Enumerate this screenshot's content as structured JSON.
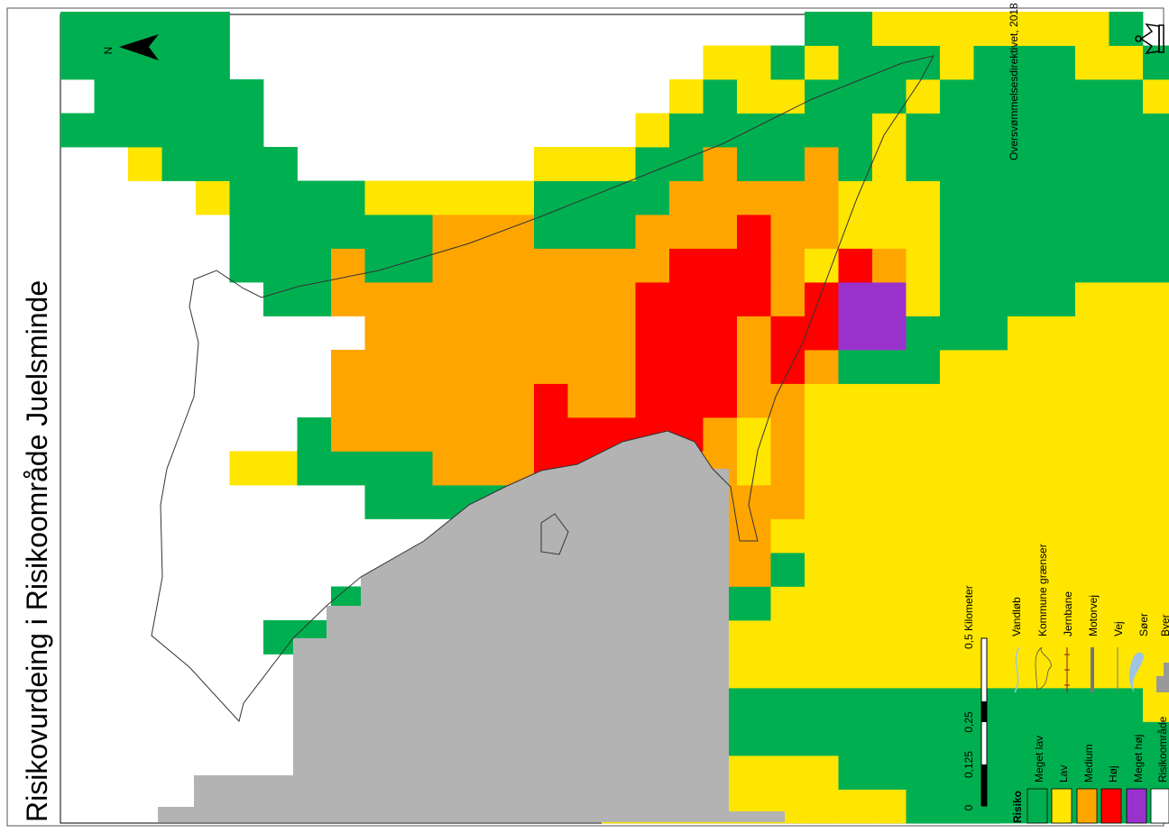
{
  "title": "Risikovurdeing i Risikoområde Juelsminde",
  "north_label": "N",
  "credit": "Oversvømmelsesdirektivet, 2018",
  "scale": {
    "ticks": [
      "0",
      "0,125",
      "0,25",
      "0,5 Kilometer"
    ]
  },
  "legend": {
    "risk_title": "Risiko",
    "risk_items": [
      {
        "label": "Meget lav",
        "color": "#00b050"
      },
      {
        "label": "Lav",
        "color": "#ffe600"
      },
      {
        "label": "Medium",
        "color": "#ffa500"
      },
      {
        "label": "Høj",
        "color": "#ff0000"
      },
      {
        "label": "Meget høj",
        "color": "#9932cc"
      },
      {
        "label": "Risikoområde",
        "color": "#ffffff"
      }
    ],
    "features": [
      {
        "label": "Vandløb",
        "icon": "stream-icon"
      },
      {
        "label": "Kommune grænser",
        "icon": "municipality-border-icon"
      },
      {
        "label": "Jernbane",
        "icon": "railway-icon"
      },
      {
        "label": "Motorvej",
        "icon": "motorway-icon"
      },
      {
        "label": "Vej",
        "icon": "road-icon"
      },
      {
        "label": "Søer",
        "icon": "lake-icon"
      },
      {
        "label": "Byer",
        "icon": "town-icon"
      }
    ]
  },
  "colors": {
    "G": "#00b050",
    "Y": "#ffe600",
    "O": "#ffa500",
    "R": "#ff0000",
    "P": "#9932cc",
    "S": "#b3b3b3",
    "W": "#ffffff"
  },
  "risk_grid": [
    "....................G.GG",
    "....................GGGG",
    "...................YGGGG",
    "...................GGGGG",
    "..................YGGGGG",
    "..........Y.....GGGGGG..",
    ".....G....Y....GGGGG....",
    "....GG....GG...GGGG.....",
    "...GGGG...GOOO.OOGG.....",
    "..YGGGG..GGOOOOOGGY.....",
    "..YYGGG..GGOOOOOGGY.....",
    ".YYYGGG..GOOOOOOOOY.....",
    "..YYGGG..GOOOOOOOOY.....",
    "..YYGGGGGGOOOOOOOOY.....",
    "..YYYGOORRRRROOOOGGY....",
    "..YYYGOOORRROOOOOGGY....",
    "YYYYYGOOORRROOOOOGGY....",
    "YYYYYGOOOORRRRRROOGGY...",
    "YYYGYGOOOOORRRRRROOGGY..",
    "YYGGYYGOOOOORRRRROOOGGY.",
    "YYGGYYGOOOYYOOORRROGGYY.",
    "YYGGYYYGYOOOORROOOOGGYG.",
    "YYGGYYYYYYYYYORRYOOOGGYG",
    "YGGGYYYYYYYYYGPPRYYGGGGG",
    "YGGGYYYYYYYYYGPPOYYYYGGY",
    "GGGGYYYYYYYYYGGYYYYGGYGY",
    "GGGGYYYYYYYYYYGGGGGGGGYY",
    "GGGGYYYYYYYYYYGGGGGGGGGY",
    "GGGGYYYYYYYYYYYGGGGGGGGY",
    "GGGGYYYYYYYYYYYGGGGGGGGY",
    "GGGGYYYYYYYYYYYYGGGGGGYY",
    "GGGGYYYYYYYYYYYYGGGGGGYG",
    "GGGYYYYYYYYYYYYYGGGGGYG.",
    "GGYYYYYYYYYYYYYYGGGGYG..",
    "GGYYYYYYYYYYYYYYYGGYY...",
    "GYYYYYYYYYYYYYYYYGY.....",
    "GY..............Y.......",
    ".G......................",
    ".GY.....................",
    "..Y....................."
  ]
}
